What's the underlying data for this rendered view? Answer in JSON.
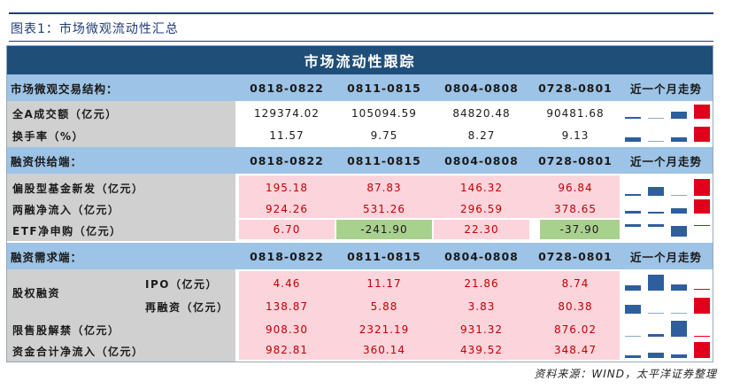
{
  "figure_title": "图表1：市场微观流动性汇总",
  "banner": "市场流动性跟踪",
  "trend_header": "近一个月走势",
  "periods": [
    "0818-0822",
    "0811-0815",
    "0804-0808",
    "0728-0801"
  ],
  "sections": [
    {
      "header": "市场微观交易结构：",
      "rows": [
        {
          "label": "全A成交额（亿元）",
          "values": [
            "129374.02",
            "105094.59",
            "84820.48",
            "90481.68"
          ]
        },
        {
          "label": "换手率（%）",
          "values": [
            "11.57",
            "9.75",
            "8.27",
            "9.13"
          ]
        }
      ]
    },
    {
      "header": "融资供给端：",
      "rows": [
        {
          "label": "偏股型基金新发（亿元）",
          "values": [
            "195.18",
            "87.83",
            "146.32",
            "96.84"
          ]
        },
        {
          "label": "两融净流入（亿元）",
          "values": [
            "924.26",
            "531.26",
            "296.59",
            "378.65"
          ]
        },
        {
          "label": "ETF净申购（亿元）",
          "values": [
            "6.70",
            "-241.90",
            "22.30",
            "-37.90"
          ]
        }
      ]
    },
    {
      "header": "融资需求端：",
      "group_label": "股权融资",
      "rows": [
        {
          "label": "IPO（亿元）",
          "values": [
            "4.46",
            "11.17",
            "21.86",
            "8.74"
          ]
        },
        {
          "label": "再融资（亿元）",
          "values": [
            "138.87",
            "5.88",
            "3.83",
            "80.38"
          ]
        },
        {
          "label": "限售股解禁（亿元）",
          "values": [
            "908.30",
            "2321.19",
            "931.32",
            "876.02"
          ]
        },
        {
          "label": "资金合计净流入（亿元）",
          "values": [
            "982.81",
            "360.14",
            "439.52",
            "348.47"
          ]
        }
      ]
    }
  ],
  "source": "资料来源：WIND，太平洋证券整理",
  "colors": {
    "banner": "#1f4e79",
    "section_header": "#9dc3e6",
    "label_bg": "#d0d0d0",
    "highlight_pink": "#fbd4dc",
    "highlight_green": "#a9d18e",
    "spark_bar": "#2e5e9e",
    "spark_latest": "#e0001b"
  }
}
